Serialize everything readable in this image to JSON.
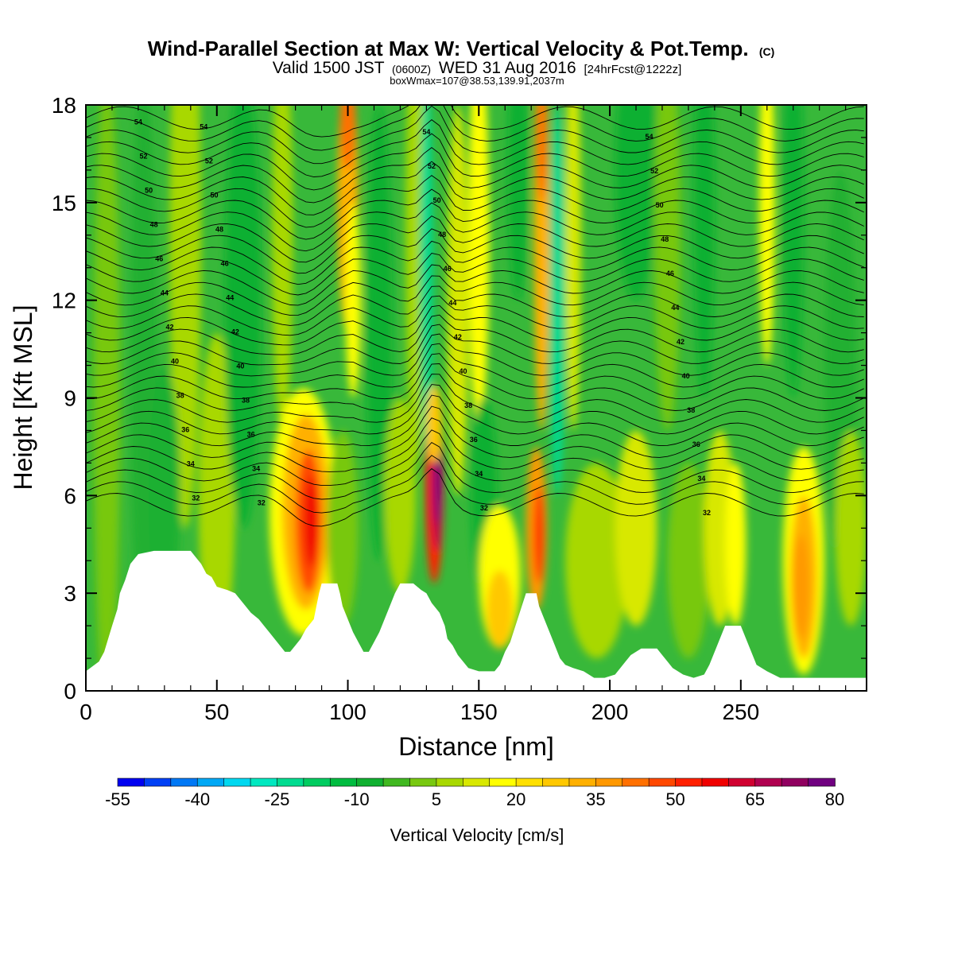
{
  "chart_data": {
    "type": "heatmap",
    "title": "Wind-Parallel Section at Max W: Vertical Velocity & Pot.Temp.",
    "title_mark": "(C)",
    "subtitle_parts": [
      "Valid 1500 JST",
      "(0600Z)",
      "WED 31 Aug 2016",
      "[24hrFcst@1222z]"
    ],
    "subtitle2": "boxWmax=107@38.53,139.91,2037m",
    "xlabel": "Distance [nm]",
    "ylabel": "Height [Kft MSL]",
    "xlim": [
      0,
      298
    ],
    "ylim": [
      0,
      18
    ],
    "x_ticks": [
      0,
      50,
      100,
      150,
      200,
      250
    ],
    "y_ticks": [
      0,
      3,
      6,
      9,
      12,
      15,
      18
    ],
    "colorbar": {
      "label": "Vertical Velocity [cm/s]",
      "tick_labels": [
        "-55",
        "-40",
        "-25",
        "-10",
        "5",
        "20",
        "35",
        "50",
        "65",
        "80"
      ],
      "min": -55,
      "max": 80,
      "step": 5,
      "colors": [
        "#0000f0",
        "#0040f5",
        "#0078f5",
        "#00a8f5",
        "#00d8f0",
        "#00e8c0",
        "#00dc90",
        "#00cc60",
        "#00bc40",
        "#10b030",
        "#40b820",
        "#78c810",
        "#a8d800",
        "#d8e800",
        "#ffff00",
        "#ffe000",
        "#ffc800",
        "#ffb000",
        "#ff9800",
        "#ff7000",
        "#ff4800",
        "#ff2000",
        "#f00000",
        "#d00030",
        "#b00050",
        "#900060",
        "#700080"
      ]
    },
    "theta_contour_labels": [
      "54",
      "52",
      "50",
      "48",
      "46",
      "44",
      "42",
      "40",
      "38",
      "36",
      "34",
      "32"
    ],
    "terrain_kft": [
      [
        0,
        0.6
      ],
      [
        5,
        0.9
      ],
      [
        7,
        1.2
      ],
      [
        10,
        2.0
      ],
      [
        12,
        2.5
      ],
      [
        13,
        3.0
      ],
      [
        15,
        3.4
      ],
      [
        17,
        3.9
      ],
      [
        20,
        4.2
      ],
      [
        26,
        4.3
      ],
      [
        32,
        4.3
      ],
      [
        40,
        4.3
      ],
      [
        42,
        4.1
      ],
      [
        44,
        3.9
      ],
      [
        46,
        3.6
      ],
      [
        48,
        3.5
      ],
      [
        50,
        3.2
      ],
      [
        54,
        3.1
      ],
      [
        57,
        3.0
      ],
      [
        60,
        2.7
      ],
      [
        63,
        2.4
      ],
      [
        66,
        2.2
      ],
      [
        68,
        2.0
      ],
      [
        70,
        1.8
      ],
      [
        72,
        1.6
      ],
      [
        74,
        1.4
      ],
      [
        76,
        1.2
      ],
      [
        78,
        1.2
      ],
      [
        80,
        1.4
      ],
      [
        82,
        1.6
      ],
      [
        84,
        1.9
      ],
      [
        87,
        2.2
      ],
      [
        88,
        2.6
      ],
      [
        89,
        3.0
      ],
      [
        90,
        3.3
      ],
      [
        96,
        3.3
      ],
      [
        97,
        3.0
      ],
      [
        98,
        2.6
      ],
      [
        100,
        2.2
      ],
      [
        102,
        1.8
      ],
      [
        104,
        1.5
      ],
      [
        106,
        1.2
      ],
      [
        108,
        1.2
      ],
      [
        110,
        1.5
      ],
      [
        112,
        1.8
      ],
      [
        114,
        2.2
      ],
      [
        116,
        2.6
      ],
      [
        118,
        3.0
      ],
      [
        120,
        3.3
      ],
      [
        125,
        3.3
      ],
      [
        128,
        3.1
      ],
      [
        130,
        3.0
      ],
      [
        132,
        2.7
      ],
      [
        135,
        2.4
      ],
      [
        137,
        2.0
      ],
      [
        138,
        1.6
      ],
      [
        140,
        1.4
      ],
      [
        142,
        1.1
      ],
      [
        144,
        0.9
      ],
      [
        146,
        0.7
      ],
      [
        150,
        0.6
      ],
      [
        156,
        0.6
      ],
      [
        158,
        0.8
      ],
      [
        160,
        1.2
      ],
      [
        162,
        1.5
      ],
      [
        164,
        2.0
      ],
      [
        166,
        2.5
      ],
      [
        168,
        3.0
      ],
      [
        172,
        3.0
      ],
      [
        173,
        2.6
      ],
      [
        175,
        2.2
      ],
      [
        177,
        1.8
      ],
      [
        179,
        1.4
      ],
      [
        181,
        1.0
      ],
      [
        183,
        0.8
      ],
      [
        186,
        0.7
      ],
      [
        190,
        0.6
      ],
      [
        194,
        0.4
      ],
      [
        198,
        0.4
      ],
      [
        202,
        0.5
      ],
      [
        206,
        0.9
      ],
      [
        208,
        1.1
      ],
      [
        212,
        1.3
      ],
      [
        218,
        1.3
      ],
      [
        220,
        1.1
      ],
      [
        222,
        0.9
      ],
      [
        224,
        0.7
      ],
      [
        228,
        0.5
      ],
      [
        232,
        0.4
      ],
      [
        236,
        0.5
      ],
      [
        238,
        0.8
      ],
      [
        240,
        1.2
      ],
      [
        242,
        1.6
      ],
      [
        244,
        2.0
      ],
      [
        250,
        2.0
      ],
      [
        252,
        1.6
      ],
      [
        254,
        1.2
      ],
      [
        256,
        0.8
      ],
      [
        260,
        0.6
      ],
      [
        265,
        0.4
      ],
      [
        298,
        0.4
      ]
    ]
  }
}
